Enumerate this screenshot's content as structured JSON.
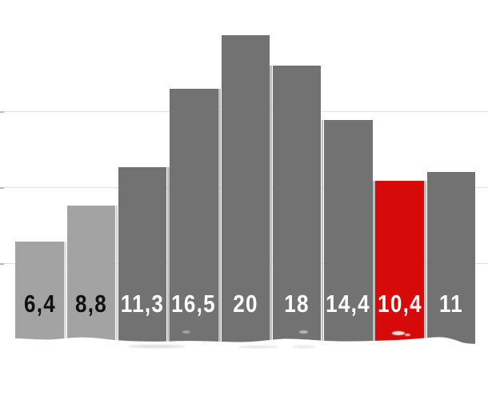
{
  "chart_data": {
    "type": "bar",
    "title": "",
    "xlabel": "",
    "ylabel": "",
    "values": [
      6.4,
      8.8,
      11.3,
      16.5,
      20,
      18,
      14.4,
      10.4,
      11
    ],
    "value_labels": [
      "6,4",
      "8,8",
      "11,3",
      "16,5",
      "20",
      "18",
      "14,4",
      "10,4",
      "11"
    ],
    "bar_colors": [
      "#a3a3a3",
      "#a3a3a3",
      "#727272",
      "#727272",
      "#727272",
      "#727272",
      "#727272",
      "#d70a0a",
      "#727272"
    ],
    "label_colors": [
      "#101010",
      "#101010",
      "#ffffff",
      "#ffffff",
      "#ffffff",
      "#ffffff",
      "#ffffff",
      "#ffffff",
      "#ffffff"
    ],
    "highlight_index": 7,
    "highlight_color": "#d70a0a",
    "gridline_values": [
      5,
      10,
      15
    ],
    "ylim": [
      0,
      22
    ],
    "grid": "horizontal-light",
    "legend": "none",
    "decimal_separator": ","
  }
}
